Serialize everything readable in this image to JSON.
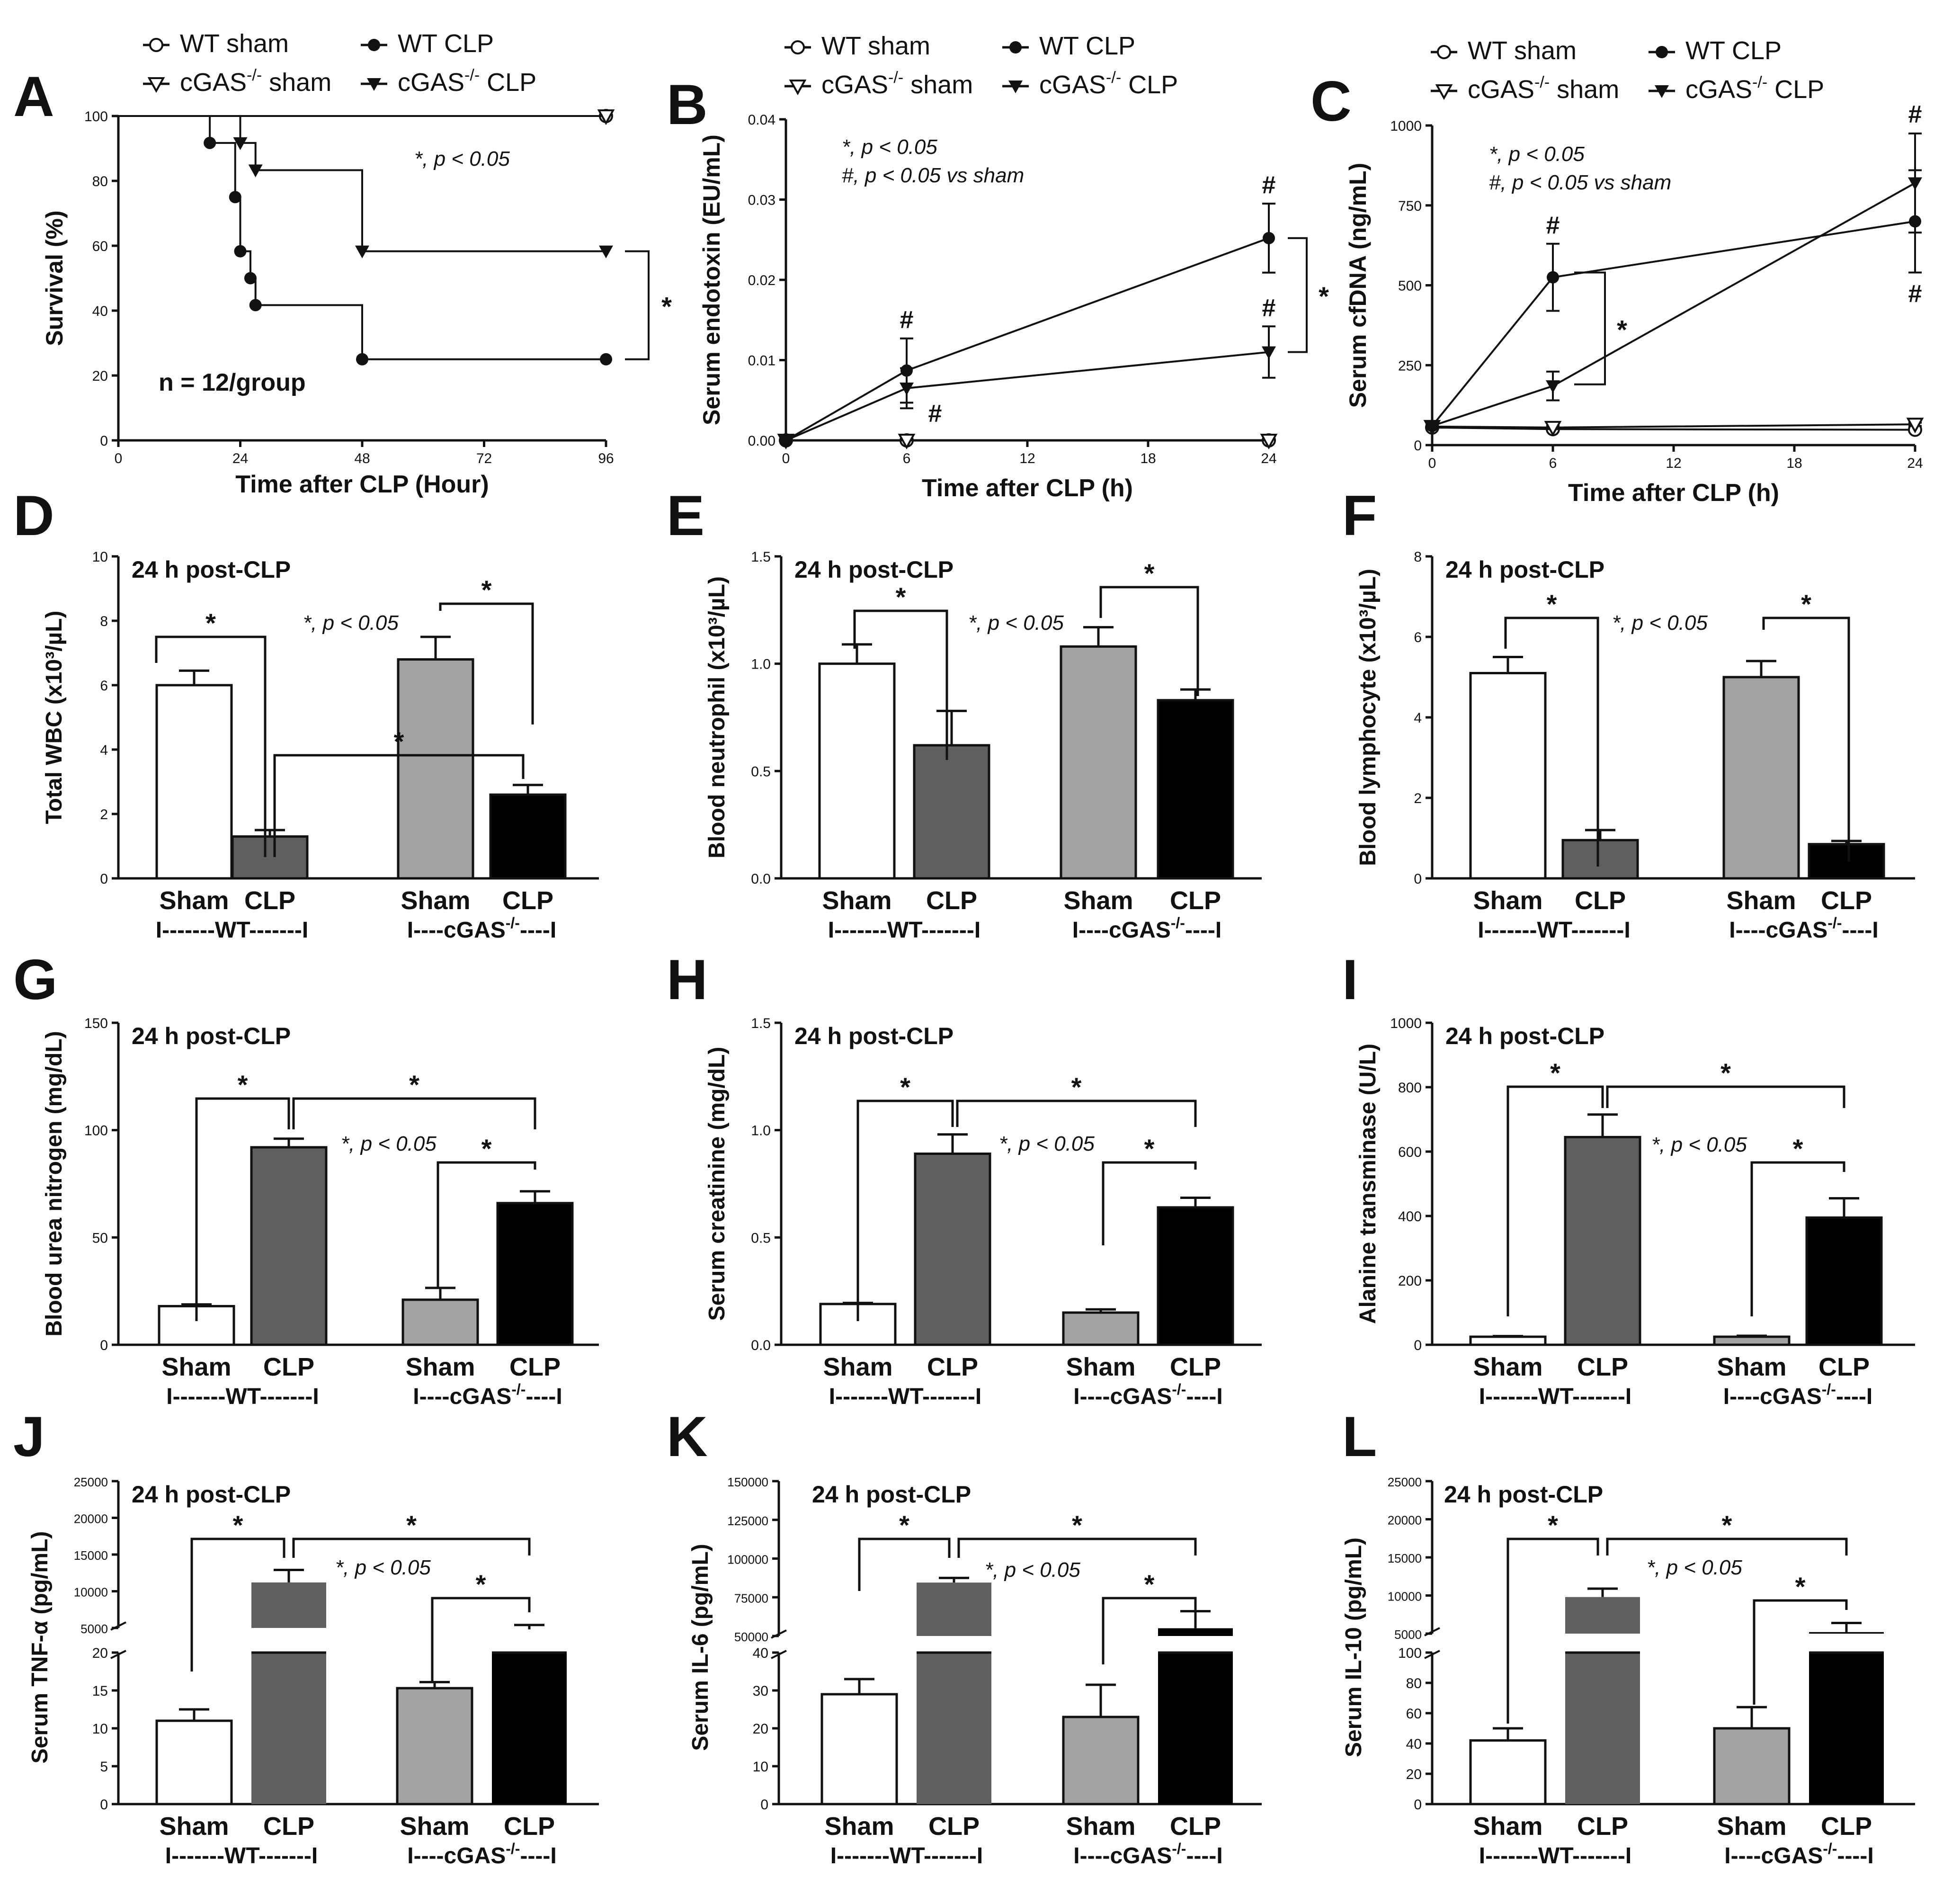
{
  "legend": {
    "wt_sham": "WT sham",
    "wt_clp": "WT CLP",
    "ko_sham": "cGAS",
    "ko_clp": "cGAS",
    "ko_sup": "-/-",
    "sham_word": "sham",
    "clp_word": "CLP"
  },
  "common": {
    "post_clp": "24 h post-CLP",
    "sig_note": "*, p < 0.05",
    "sig_sham": "#, p < 0.05 vs sham",
    "star": "*",
    "hash": "#",
    "sham": "Sham",
    "clp": "CLP",
    "wt_group": "I-------WT-------I",
    "ko_group_pre": "I----cGAS",
    "ko_group_sup": "-/-",
    "ko_group_post": "----I"
  },
  "chart_data": [
    {
      "panel": "A",
      "type": "line",
      "kind": "survival",
      "xlabel": "Time after CLP (Hour)",
      "ylabel": "Survival (%)",
      "xlim": [
        0,
        96
      ],
      "ylim": [
        0,
        100
      ],
      "xticks": [
        0,
        24,
        48,
        72,
        96
      ],
      "yticks": [
        0,
        20,
        40,
        60,
        80,
        100
      ],
      "annotation": "n = 12/group",
      "series": [
        {
          "name": "WT sham",
          "steps": [
            [
              0,
              100
            ],
            [
              96,
              100
            ]
          ],
          "markers": [
            [
              96,
              100
            ]
          ],
          "marker": "open-circle"
        },
        {
          "name": "cGAS-/- sham",
          "steps": [
            [
              0,
              100
            ],
            [
              96,
              100
            ]
          ],
          "markers": [
            [
              96,
              100
            ]
          ],
          "marker": "open-triangle"
        },
        {
          "name": "WT CLP",
          "steps": [
            [
              0,
              100
            ],
            [
              18,
              100
            ],
            [
              18,
              91.7
            ],
            [
              23,
              91.7
            ],
            [
              23,
              75
            ],
            [
              24,
              75
            ],
            [
              24,
              58.3
            ],
            [
              26,
              58.3
            ],
            [
              26,
              50
            ],
            [
              27,
              50
            ],
            [
              27,
              41.7
            ],
            [
              48,
              41.7
            ],
            [
              48,
              25
            ],
            [
              96,
              25
            ]
          ],
          "markers": [
            [
              18,
              91.7
            ],
            [
              23,
              75
            ],
            [
              24,
              58.3
            ],
            [
              26,
              50
            ],
            [
              27,
              41.7
            ],
            [
              48,
              25
            ],
            [
              96,
              25
            ]
          ],
          "marker": "filled-circle"
        },
        {
          "name": "cGAS-/- CLP",
          "steps": [
            [
              0,
              100
            ],
            [
              24,
              100
            ],
            [
              24,
              91.7
            ],
            [
              27,
              91.7
            ],
            [
              27,
              83.3
            ],
            [
              48,
              83.3
            ],
            [
              48,
              58.3
            ],
            [
              96,
              58.3
            ]
          ],
          "markers": [
            [
              24,
              91.7
            ],
            [
              27,
              83.3
            ],
            [
              48,
              58.3
            ],
            [
              96,
              58.3
            ]
          ],
          "marker": "filled-triangle"
        }
      ]
    },
    {
      "panel": "B",
      "type": "line",
      "xlabel": "Time after CLP (h)",
      "ylabel": "Serum endotoxin (EU/mL)",
      "xlim": [
        0,
        24
      ],
      "ylim": [
        0,
        0.04
      ],
      "xticks": [
        0,
        6,
        12,
        18,
        24
      ],
      "yticks": [
        0,
        0.01,
        0.02,
        0.03,
        0.04
      ],
      "ytick_labels": [
        "0.00",
        "0.01",
        "0.02",
        "0.03",
        "0.04"
      ],
      "x": [
        0,
        6,
        24
      ],
      "series": [
        {
          "name": "WT sham",
          "values": [
            0,
            0,
            0
          ],
          "err": [
            0,
            0,
            0
          ],
          "marker": "open-circle"
        },
        {
          "name": "cGAS-/- sham",
          "values": [
            0,
            0,
            0
          ],
          "err": [
            0,
            0,
            0
          ],
          "marker": "open-triangle"
        },
        {
          "name": "WT CLP",
          "values": [
            0,
            0.0087,
            0.0252
          ],
          "err": [
            0,
            0.004,
            0.0043
          ],
          "marker": "filled-circle"
        },
        {
          "name": "cGAS-/- CLP",
          "values": [
            0,
            0.0065,
            0.011
          ],
          "err": [
            0,
            0.0025,
            0.0032
          ],
          "marker": "filled-triangle"
        }
      ]
    },
    {
      "panel": "C",
      "type": "line",
      "xlabel": "Time after CLP (h)",
      "ylabel": "Serum cfDNA (ng/mL)",
      "xlim": [
        0,
        24
      ],
      "ylim": [
        0,
        1000
      ],
      "xticks": [
        0,
        6,
        12,
        18,
        24
      ],
      "yticks": [
        0,
        250,
        500,
        750,
        1000
      ],
      "x": [
        0,
        6,
        24
      ],
      "series": [
        {
          "name": "WT sham",
          "values": [
            55,
            50,
            48
          ],
          "err": [
            5,
            5,
            5
          ],
          "marker": "open-circle"
        },
        {
          "name": "cGAS-/- sham",
          "values": [
            58,
            55,
            65
          ],
          "err": [
            5,
            5,
            5
          ],
          "marker": "open-triangle"
        },
        {
          "name": "WT CLP",
          "values": [
            60,
            525,
            700
          ],
          "err": [
            0,
            105,
            160
          ],
          "marker": "filled-circle"
        },
        {
          "name": "cGAS-/- CLP",
          "values": [
            60,
            185,
            820
          ],
          "err": [
            0,
            45,
            155
          ],
          "marker": "filled-triangle"
        }
      ]
    },
    {
      "panel": "D",
      "type": "bar",
      "ylabel": "Total WBC (x10³/µL)",
      "ylim": [
        0,
        10
      ],
      "yticks": [
        0,
        2,
        4,
        6,
        8,
        10
      ],
      "categories": [
        "Sham",
        "CLP",
        "Sham",
        "CLP"
      ],
      "values": [
        6.0,
        1.3,
        6.8,
        2.6
      ],
      "err": [
        0.45,
        0.2,
        0.7,
        0.3
      ]
    },
    {
      "panel": "E",
      "type": "bar",
      "ylabel": "Blood neutrophil (x10³/µL)",
      "ylim": [
        0,
        1.5
      ],
      "yticks": [
        0,
        0.5,
        1.0,
        1.5
      ],
      "ytick_labels": [
        "0.0",
        "0.5",
        "1.0",
        "1.5"
      ],
      "categories": [
        "Sham",
        "CLP",
        "Sham",
        "CLP"
      ],
      "values": [
        1.0,
        0.62,
        1.08,
        0.83
      ],
      "err": [
        0.09,
        0.16,
        0.09,
        0.05
      ]
    },
    {
      "panel": "F",
      "type": "bar",
      "ylabel": "Blood lymphocyte (x10³/µL)",
      "ylim": [
        0,
        8
      ],
      "yticks": [
        0,
        2,
        4,
        6,
        8
      ],
      "categories": [
        "Sham",
        "CLP",
        "Sham",
        "CLP"
      ],
      "values": [
        5.1,
        0.95,
        5.0,
        0.85
      ],
      "err": [
        0.4,
        0.25,
        0.4,
        0.08
      ]
    },
    {
      "panel": "G",
      "type": "bar",
      "ylabel": "Blood urea nitrogen (mg/dL)",
      "ylim": [
        0,
        150
      ],
      "yticks": [
        0,
        50,
        100,
        150
      ],
      "categories": [
        "Sham",
        "CLP",
        "Sham",
        "CLP"
      ],
      "values": [
        18,
        92,
        21,
        66
      ],
      "err": [
        0.8,
        4,
        5.5,
        5.5
      ]
    },
    {
      "panel": "H",
      "type": "bar",
      "ylabel": "Serum creatinine (mg/dL)",
      "ylim": [
        0,
        1.5
      ],
      "yticks": [
        0,
        0.5,
        1.0,
        1.5
      ],
      "ytick_labels": [
        "0.0",
        "0.5",
        "1.0",
        "1.5"
      ],
      "categories": [
        "Sham",
        "CLP",
        "Sham",
        "CLP"
      ],
      "values": [
        0.19,
        0.89,
        0.15,
        0.64
      ],
      "err": [
        0.005,
        0.09,
        0.015,
        0.045
      ]
    },
    {
      "panel": "I",
      "type": "bar",
      "ylabel": "Alanine transminase (U/L)",
      "ylim": [
        0,
        1000
      ],
      "yticks": [
        0,
        200,
        400,
        600,
        800,
        1000
      ],
      "categories": [
        "Sham",
        "CLP",
        "Sham",
        "CLP"
      ],
      "values": [
        25,
        645,
        25,
        395
      ],
      "err": [
        2,
        70,
        3,
        60
      ]
    },
    {
      "panel": "J",
      "type": "bar",
      "broken_axis": true,
      "ylabel": "Serum TNF-α (pg/mL)",
      "lower_ylim": [
        0,
        20
      ],
      "lower_yticks": [
        0,
        5,
        10,
        15,
        20
      ],
      "upper_ylim": [
        5000,
        25000
      ],
      "upper_yticks": [
        5000,
        10000,
        15000,
        20000,
        25000
      ],
      "categories": [
        "Sham",
        "CLP",
        "Sham",
        "CLP"
      ],
      "values": [
        11,
        11200,
        15.3,
        4800
      ],
      "err": [
        1.5,
        1700,
        0.8,
        600
      ]
    },
    {
      "panel": "K",
      "type": "bar",
      "broken_axis": true,
      "ylabel": "Serum IL-6 (pg/mL)",
      "lower_ylim": [
        0,
        40
      ],
      "lower_yticks": [
        0,
        10,
        20,
        30,
        40
      ],
      "upper_ylim": [
        50000,
        150000
      ],
      "upper_yticks": [
        50000,
        75000,
        100000,
        125000,
        150000
      ],
      "categories": [
        "Sham",
        "CLP",
        "Sham",
        "CLP"
      ],
      "values": [
        29,
        84500,
        23,
        55000
      ],
      "err": [
        4,
        3000,
        8.5,
        11000
      ]
    },
    {
      "panel": "L",
      "type": "bar",
      "broken_axis": true,
      "ylabel": "Serum IL-10 (pg/mL)",
      "lower_ylim": [
        0,
        100
      ],
      "lower_yticks": [
        0,
        20,
        40,
        60,
        80,
        100
      ],
      "upper_ylim": [
        5000,
        25000
      ],
      "upper_yticks": [
        5000,
        10000,
        15000,
        20000,
        25000
      ],
      "categories": [
        "Sham",
        "CLP",
        "Sham",
        "CLP"
      ],
      "values": [
        42,
        9800,
        50,
        5200
      ],
      "err": [
        8,
        1100,
        14,
        1200
      ]
    }
  ]
}
